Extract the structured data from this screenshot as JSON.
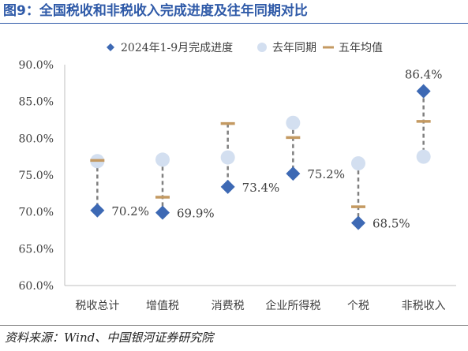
{
  "figure": {
    "title": "图9：全国税收和非税收入完成进度及往年同期对比",
    "source": "资料来源：Wind、中国银河证券研究院"
  },
  "colors": {
    "title_blue": "#2f5aa8",
    "progress": "#3d69b4",
    "last_year": "#d3dff0",
    "five_year_avg": "#c49a62",
    "connector": "#7f7f7f",
    "axis": "#bfbfbf",
    "text": "#404040"
  },
  "chart_data": {
    "type": "scatter",
    "categories": [
      "税收总计",
      "增值税",
      "消费税",
      "企业所得税",
      "个税",
      "非税收入"
    ],
    "series": [
      {
        "name": "2024年1-9月完成进度",
        "marker": "diamond",
        "values": [
          70.2,
          69.9,
          73.4,
          75.2,
          68.5,
          86.4
        ]
      },
      {
        "name": "去年同期",
        "marker": "circle",
        "values": [
          76.9,
          77.1,
          77.4,
          82.1,
          76.6,
          77.5
        ]
      },
      {
        "name": "五年均值",
        "marker": "dash",
        "values": [
          77.0,
          72.0,
          82.0,
          80.1,
          70.7,
          82.3
        ]
      }
    ],
    "data_labels": [
      "70.2%",
      "69.9%",
      "73.4%",
      "75.2%",
      "68.5%",
      "86.4%"
    ],
    "ylim": [
      60,
      90
    ],
    "yticks": [
      60,
      65,
      70,
      75,
      80,
      85,
      90
    ],
    "ytick_labels": [
      "60.0%",
      "65.0%",
      "70.0%",
      "75.0%",
      "80.0%",
      "85.0%",
      "90.0%"
    ],
    "legend_position": "top",
    "grid": false
  }
}
